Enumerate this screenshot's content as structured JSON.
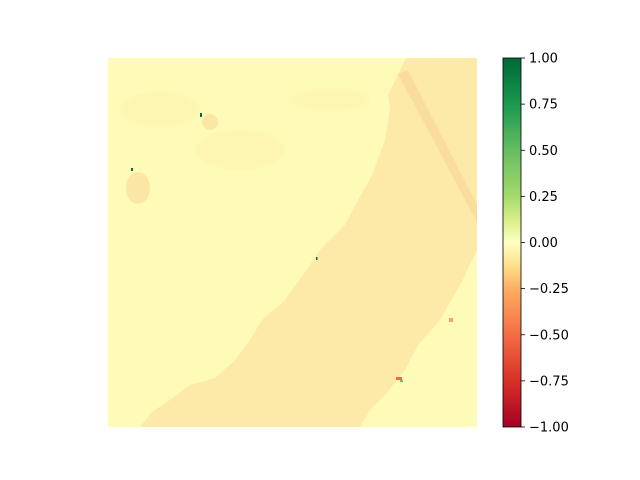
{
  "chart_data": {
    "type": "heatmap",
    "title": "",
    "xlabel": "",
    "ylabel": "",
    "axes_visible": false,
    "grid": false,
    "colormap": "RdYlGn",
    "colorbar": {
      "position": "right",
      "range": [
        -1.0,
        1.0
      ],
      "ticks": [
        1.0,
        0.75,
        0.5,
        0.25,
        0.0,
        -0.25,
        -0.5,
        -0.75,
        -1.0
      ],
      "tick_labels": [
        "1.00",
        "0.75",
        "0.50",
        "0.25",
        "0.00",
        "−0.25",
        "−0.50",
        "−0.75",
        "−1.00"
      ],
      "stops": [
        {
          "value": 1.0,
          "color": "#006837"
        },
        {
          "value": 0.75,
          "color": "#1a9850"
        },
        {
          "value": 0.5,
          "color": "#66bd63"
        },
        {
          "value": 0.25,
          "color": "#a6d96a"
        },
        {
          "value": 0.125,
          "color": "#d9ef8b"
        },
        {
          "value": 0.0,
          "color": "#ffffbf"
        },
        {
          "value": -0.125,
          "color": "#fee08b"
        },
        {
          "value": -0.25,
          "color": "#fdae61"
        },
        {
          "value": -0.5,
          "color": "#f46d43"
        },
        {
          "value": -0.75,
          "color": "#d73027"
        },
        {
          "value": -1.0,
          "color": "#a50026"
        }
      ]
    },
    "regions": [
      {
        "name": "background",
        "approx_value": -0.03,
        "color": "#fefbb8"
      },
      {
        "name": "lower-right-band",
        "approx_value": -0.12,
        "color": "#fde9a8"
      },
      {
        "name": "diagonal-stripe",
        "approx_value": -0.2,
        "color": "#f9d99a"
      },
      {
        "name": "left-patch",
        "approx_value": -0.1,
        "color": "#fbe6a6"
      },
      {
        "name": "dark-speck",
        "approx_value": 0.95,
        "color": "#0b6b3a"
      },
      {
        "name": "red-speck",
        "approx_value": -0.6,
        "color": "#ef6a43"
      }
    ]
  }
}
